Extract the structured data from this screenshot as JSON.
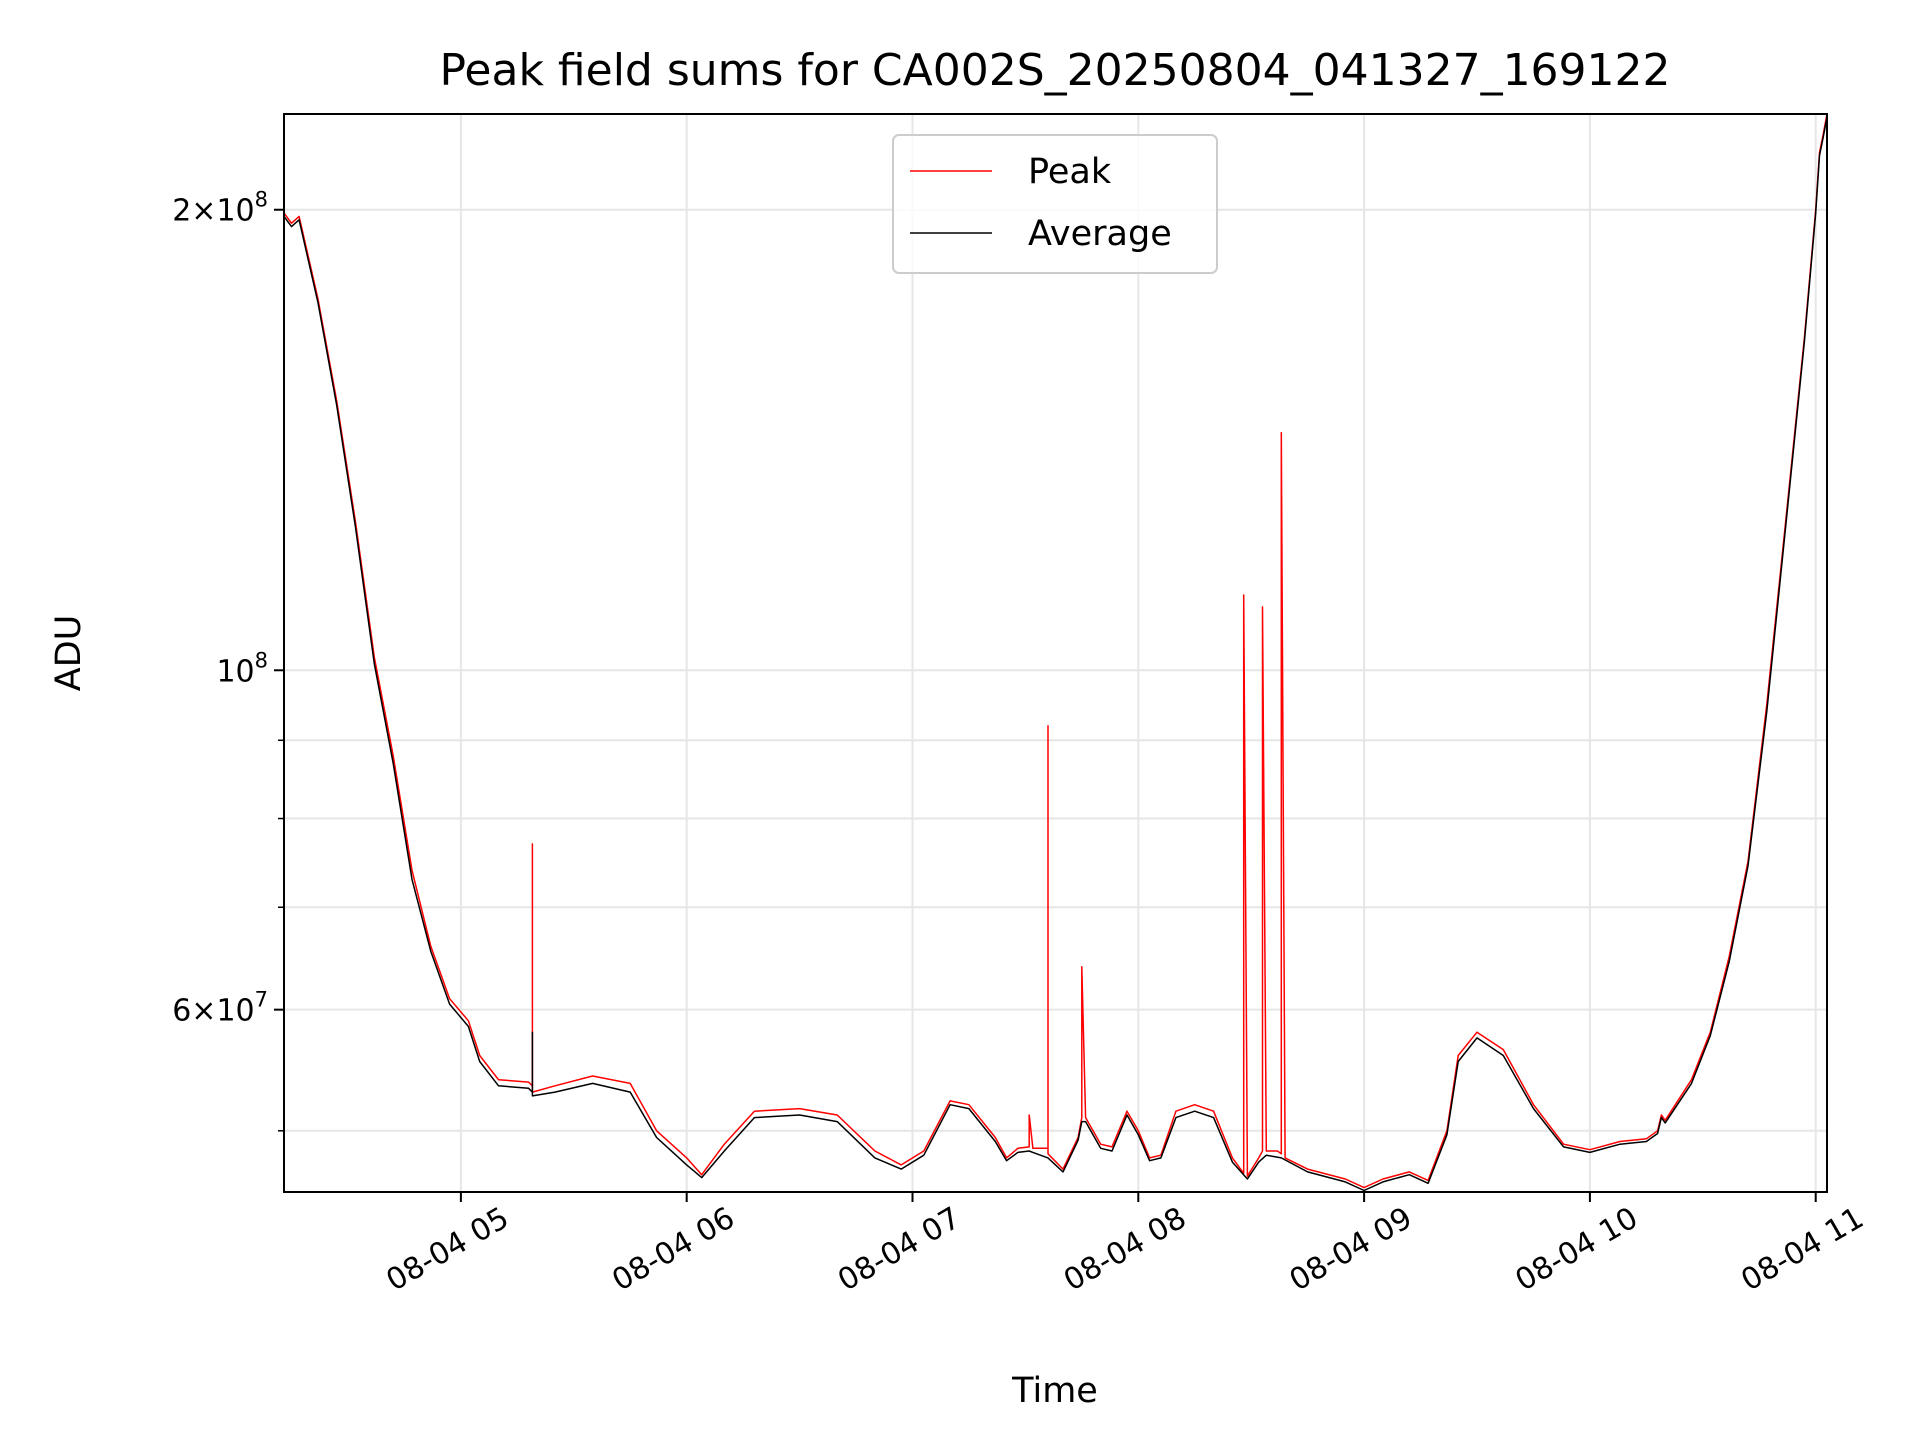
{
  "chart_data": {
    "type": "line",
    "title": "Peak field sums for CA002S_20250804_041327_169122",
    "xlabel": "Time",
    "ylabel": "ADU",
    "y_scale": "log",
    "x_range": [
      "2025-08-04 04:13",
      "2025-08-04 11:03"
    ],
    "ylim": [
      45600000,
      231000000
    ],
    "grid": true,
    "legend_position": "top-center",
    "x_ticks": [
      {
        "time": "2025-08-04 05:00",
        "label": "08-04 05"
      },
      {
        "time": "2025-08-04 06:00",
        "label": "08-04 06"
      },
      {
        "time": "2025-08-04 07:00",
        "label": "08-04 07"
      },
      {
        "time": "2025-08-04 08:00",
        "label": "08-04 08"
      },
      {
        "time": "2025-08-04 09:00",
        "label": "08-04 09"
      },
      {
        "time": "2025-08-04 10:00",
        "label": "08-04 10"
      },
      {
        "time": "2025-08-04 11:00",
        "label": "08-04 11"
      }
    ],
    "y_major_ticks": [
      {
        "value": 60000000,
        "mant": "6",
        "exp": "7"
      },
      {
        "value": 100000000,
        "mant": "",
        "exp": "8"
      },
      {
        "value": 200000000,
        "mant": "2",
        "exp": "8"
      }
    ],
    "y_minor_ticks": [
      50000000,
      70000000,
      80000000,
      90000000
    ],
    "series": [
      {
        "name": "Peak",
        "color": "#ff0000",
        "points": [
          [
            "2025-08-04 04:13",
            199000000
          ],
          [
            "2025-08-04 04:15",
            196000000
          ],
          [
            "2025-08-04 04:17",
            198000000
          ],
          [
            "2025-08-04 04:22",
            175000000
          ],
          [
            "2025-08-04 04:27",
            150000000
          ],
          [
            "2025-08-04 04:32",
            125000000
          ],
          [
            "2025-08-04 04:37",
            102000000
          ],
          [
            "2025-08-04 04:42",
            88000000
          ],
          [
            "2025-08-04 04:47",
            74000000
          ],
          [
            "2025-08-04 04:52",
            66000000
          ],
          [
            "2025-08-04 04:57",
            61000000
          ],
          [
            "2025-08-04 05:02",
            59000000
          ],
          [
            "2025-08-04 05:05",
            56000000
          ],
          [
            "2025-08-04 05:10",
            54000000
          ],
          [
            "2025-08-04 05:18",
            53800000
          ],
          [
            "2025-08-04 05:19",
            53500000
          ],
          [
            "2025-08-04 05:19",
            77000000
          ],
          [
            "2025-08-04 05:19",
            53000000
          ],
          [
            "2025-08-04 05:25",
            53500000
          ],
          [
            "2025-08-04 05:35",
            54300000
          ],
          [
            "2025-08-04 05:45",
            53700000
          ],
          [
            "2025-08-04 05:52",
            50000000
          ],
          [
            "2025-08-04 06:00",
            48000000
          ],
          [
            "2025-08-04 06:04",
            46800000
          ],
          [
            "2025-08-04 06:10",
            49000000
          ],
          [
            "2025-08-04 06:18",
            51500000
          ],
          [
            "2025-08-04 06:30",
            51700000
          ],
          [
            "2025-08-04 06:40",
            51200000
          ],
          [
            "2025-08-04 06:50",
            48500000
          ],
          [
            "2025-08-04 06:57",
            47500000
          ],
          [
            "2025-08-04 07:03",
            48500000
          ],
          [
            "2025-08-04 07:10",
            52300000
          ],
          [
            "2025-08-04 07:15",
            52000000
          ],
          [
            "2025-08-04 07:22",
            49500000
          ],
          [
            "2025-08-04 07:25",
            48000000
          ],
          [
            "2025-08-04 07:28",
            48700000
          ],
          [
            "2025-08-04 07:31",
            48800000
          ],
          [
            "2025-08-04 07:31",
            51200000
          ],
          [
            "2025-08-04 07:32",
            48700000
          ],
          [
            "2025-08-04 07:36",
            48700000
          ],
          [
            "2025-08-04 07:36",
            92000000
          ],
          [
            "2025-08-04 07:36",
            48300000
          ],
          [
            "2025-08-04 07:40",
            47200000
          ],
          [
            "2025-08-04 07:44",
            49500000
          ],
          [
            "2025-08-04 07:45",
            51000000
          ],
          [
            "2025-08-04 07:45",
            64000000
          ],
          [
            "2025-08-04 07:46",
            51000000
          ],
          [
            "2025-08-04 07:50",
            49000000
          ],
          [
            "2025-08-04 07:53",
            48800000
          ],
          [
            "2025-08-04 07:57",
            51500000
          ],
          [
            "2025-08-04 08:00",
            50000000
          ],
          [
            "2025-08-04 08:03",
            48000000
          ],
          [
            "2025-08-04 08:06",
            48200000
          ],
          [
            "2025-08-04 08:10",
            51500000
          ],
          [
            "2025-08-04 08:15",
            52000000
          ],
          [
            "2025-08-04 08:20",
            51500000
          ],
          [
            "2025-08-04 08:25",
            48000000
          ],
          [
            "2025-08-04 08:28",
            46900000
          ],
          [
            "2025-08-04 08:28",
            112000000
          ],
          [
            "2025-08-04 08:29",
            46700000
          ],
          [
            "2025-08-04 08:32",
            48000000
          ],
          [
            "2025-08-04 08:33",
            48500000
          ],
          [
            "2025-08-04 08:33",
            110000000
          ],
          [
            "2025-08-04 08:34",
            48500000
          ],
          [
            "2025-08-04 08:37",
            48500000
          ],
          [
            "2025-08-04 08:38",
            48300000
          ],
          [
            "2025-08-04 08:38",
            143000000
          ],
          [
            "2025-08-04 08:39",
            48000000
          ],
          [
            "2025-08-04 08:45",
            47200000
          ],
          [
            "2025-08-04 08:55",
            46500000
          ],
          [
            "2025-08-04 09:00",
            45900000
          ],
          [
            "2025-08-04 09:05",
            46500000
          ],
          [
            "2025-08-04 09:12",
            47000000
          ],
          [
            "2025-08-04 09:17",
            46400000
          ],
          [
            "2025-08-04 09:22",
            50000000
          ],
          [
            "2025-08-04 09:25",
            56000000
          ],
          [
            "2025-08-04 09:30",
            58000000
          ],
          [
            "2025-08-04 09:37",
            56500000
          ],
          [
            "2025-08-04 09:45",
            52000000
          ],
          [
            "2025-08-04 09:53",
            49000000
          ],
          [
            "2025-08-04 10:00",
            48600000
          ],
          [
            "2025-08-04 10:08",
            49200000
          ],
          [
            "2025-08-04 10:15",
            49400000
          ],
          [
            "2025-08-04 10:18",
            50000000
          ],
          [
            "2025-08-04 10:19",
            51200000
          ],
          [
            "2025-08-04 10:20",
            50800000
          ],
          [
            "2025-08-04 10:27",
            54000000
          ],
          [
            "2025-08-04 10:32",
            58000000
          ],
          [
            "2025-08-04 10:37",
            65000000
          ],
          [
            "2025-08-04 10:42",
            75000000
          ],
          [
            "2025-08-04 10:47",
            95000000
          ],
          [
            "2025-08-04 10:52",
            125000000
          ],
          [
            "2025-08-04 10:57",
            165000000
          ],
          [
            "2025-08-04 11:00",
            200000000
          ],
          [
            "2025-08-04 11:01",
            218000000
          ],
          [
            "2025-08-04 11:02",
            224000000
          ],
          [
            "2025-08-04 11:03",
            231000000
          ]
        ]
      },
      {
        "name": "Average",
        "color": "#000000",
        "points": [
          [
            "2025-08-04 04:13",
            198000000
          ],
          [
            "2025-08-04 04:15",
            195000000
          ],
          [
            "2025-08-04 04:17",
            197000000
          ],
          [
            "2025-08-04 04:22",
            174000000
          ],
          [
            "2025-08-04 04:27",
            149000000
          ],
          [
            "2025-08-04 04:32",
            124000000
          ],
          [
            "2025-08-04 04:37",
            101000000
          ],
          [
            "2025-08-04 04:42",
            87000000
          ],
          [
            "2025-08-04 04:47",
            73000000
          ],
          [
            "2025-08-04 04:52",
            65500000
          ],
          [
            "2025-08-04 04:57",
            60500000
          ],
          [
            "2025-08-04 05:02",
            58500000
          ],
          [
            "2025-08-04 05:05",
            55500000
          ],
          [
            "2025-08-04 05:10",
            53500000
          ],
          [
            "2025-08-04 05:18",
            53300000
          ],
          [
            "2025-08-04 05:19",
            53000000
          ],
          [
            "2025-08-04 05:19",
            58000000
          ],
          [
            "2025-08-04 05:19",
            52700000
          ],
          [
            "2025-08-04 05:25",
            53000000
          ],
          [
            "2025-08-04 05:35",
            53700000
          ],
          [
            "2025-08-04 05:45",
            53000000
          ],
          [
            "2025-08-04 05:52",
            49500000
          ],
          [
            "2025-08-04 06:00",
            47500000
          ],
          [
            "2025-08-04 06:04",
            46600000
          ],
          [
            "2025-08-04 06:10",
            48500000
          ],
          [
            "2025-08-04 06:18",
            51000000
          ],
          [
            "2025-08-04 06:30",
            51200000
          ],
          [
            "2025-08-04 06:40",
            50700000
          ],
          [
            "2025-08-04 06:50",
            48000000
          ],
          [
            "2025-08-04 06:57",
            47200000
          ],
          [
            "2025-08-04 07:03",
            48200000
          ],
          [
            "2025-08-04 07:10",
            52000000
          ],
          [
            "2025-08-04 07:15",
            51700000
          ],
          [
            "2025-08-04 07:22",
            49200000
          ],
          [
            "2025-08-04 07:25",
            47800000
          ],
          [
            "2025-08-04 07:28",
            48400000
          ],
          [
            "2025-08-04 07:31",
            48500000
          ],
          [
            "2025-08-04 07:32",
            48400000
          ],
          [
            "2025-08-04 07:36",
            48000000
          ],
          [
            "2025-08-04 07:40",
            47000000
          ],
          [
            "2025-08-04 07:44",
            49300000
          ],
          [
            "2025-08-04 07:45",
            50700000
          ],
          [
            "2025-08-04 07:46",
            50700000
          ],
          [
            "2025-08-04 07:50",
            48700000
          ],
          [
            "2025-08-04 07:53",
            48500000
          ],
          [
            "2025-08-04 07:57",
            51200000
          ],
          [
            "2025-08-04 08:00",
            49700000
          ],
          [
            "2025-08-04 08:03",
            47800000
          ],
          [
            "2025-08-04 08:06",
            48000000
          ],
          [
            "2025-08-04 08:10",
            51000000
          ],
          [
            "2025-08-04 08:15",
            51500000
          ],
          [
            "2025-08-04 08:20",
            51000000
          ],
          [
            "2025-08-04 08:25",
            47700000
          ],
          [
            "2025-08-04 08:29",
            46500000
          ],
          [
            "2025-08-04 08:32",
            47700000
          ],
          [
            "2025-08-04 08:34",
            48200000
          ],
          [
            "2025-08-04 08:38",
            48000000
          ],
          [
            "2025-08-04 08:45",
            47000000
          ],
          [
            "2025-08-04 08:55",
            46300000
          ],
          [
            "2025-08-04 09:00",
            45700000
          ],
          [
            "2025-08-04 09:05",
            46300000
          ],
          [
            "2025-08-04 09:12",
            46800000
          ],
          [
            "2025-08-04 09:17",
            46200000
          ],
          [
            "2025-08-04 09:22",
            49700000
          ],
          [
            "2025-08-04 09:25",
            55500000
          ],
          [
            "2025-08-04 09:30",
            57500000
          ],
          [
            "2025-08-04 09:37",
            56000000
          ],
          [
            "2025-08-04 09:45",
            51700000
          ],
          [
            "2025-08-04 09:53",
            48800000
          ],
          [
            "2025-08-04 10:00",
            48400000
          ],
          [
            "2025-08-04 10:08",
            49000000
          ],
          [
            "2025-08-04 10:15",
            49200000
          ],
          [
            "2025-08-04 10:18",
            49800000
          ],
          [
            "2025-08-04 10:19",
            51000000
          ],
          [
            "2025-08-04 10:20",
            50600000
          ],
          [
            "2025-08-04 10:27",
            53700000
          ],
          [
            "2025-08-04 10:32",
            57700000
          ],
          [
            "2025-08-04 10:37",
            64500000
          ],
          [
            "2025-08-04 10:42",
            74500000
          ],
          [
            "2025-08-04 10:47",
            94000000
          ],
          [
            "2025-08-04 10:52",
            124000000
          ],
          [
            "2025-08-04 10:57",
            164000000
          ],
          [
            "2025-08-04 11:00",
            199000000
          ],
          [
            "2025-08-04 11:01",
            217000000
          ],
          [
            "2025-08-04 11:02",
            223000000
          ],
          [
            "2025-08-04 11:03",
            230000000
          ]
        ]
      }
    ]
  }
}
